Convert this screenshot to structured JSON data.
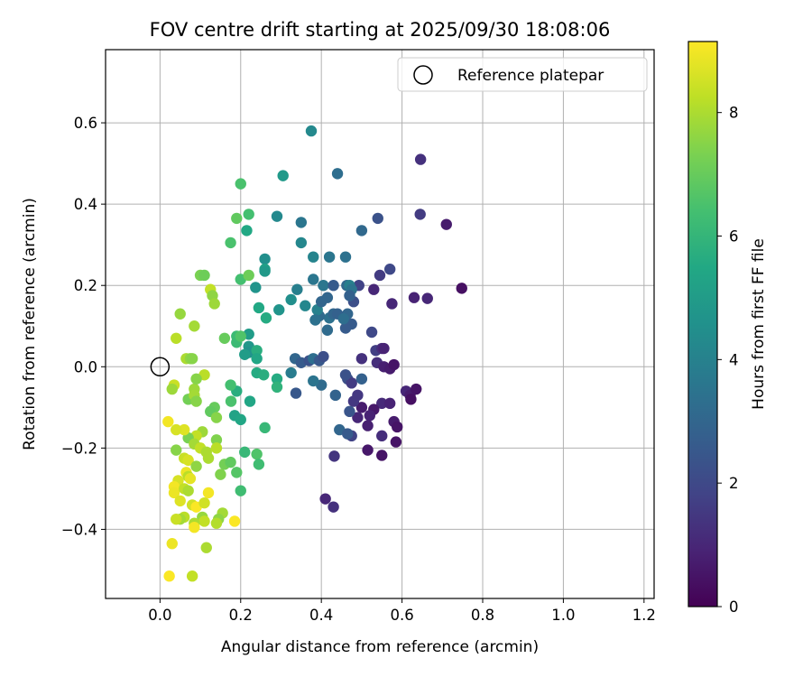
{
  "chart_data": {
    "type": "scatter",
    "title": "FOV centre drift starting at 2025/09/30 18:08:06",
    "xlabel": "Angular distance from reference (arcmin)",
    "ylabel": "Rotation from reference (arcmin)",
    "xlim": [
      -0.135,
      1.225
    ],
    "ylim": [
      -0.57,
      0.78
    ],
    "xticks": [
      0.0,
      0.2,
      0.4,
      0.6,
      0.8,
      1.0,
      1.2
    ],
    "xtick_labels": [
      "0.0",
      "0.2",
      "0.4",
      "0.6",
      "0.8",
      "1.0",
      "1.2"
    ],
    "yticks": [
      -0.4,
      -0.2,
      0.0,
      0.2,
      0.4,
      0.6
    ],
    "ytick_labels": [
      "−0.4",
      "−0.2",
      "0.0",
      "0.2",
      "0.4",
      "0.6"
    ],
    "grid": true,
    "legend": {
      "label": "Reference platepar",
      "position": "top-right"
    },
    "reference_point": {
      "x": 0.0,
      "y": 0.0
    },
    "colorbar": {
      "label": "Hours from first FF file",
      "min": 0,
      "max": 9.15,
      "ticks": [
        0,
        2,
        4,
        6,
        8
      ],
      "tick_labels": [
        "0",
        "2",
        "4",
        "6",
        "8"
      ],
      "colormap": "viridis"
    },
    "points": [
      {
        "x": 0.646,
        "y": 0.51,
        "h": 1.3
      },
      {
        "x": 0.71,
        "y": 0.35,
        "h": 0.7
      },
      {
        "x": 0.748,
        "y": 0.193,
        "h": 0.4
      },
      {
        "x": 0.645,
        "y": 0.375,
        "h": 1.6
      },
      {
        "x": 0.663,
        "y": 0.168,
        "h": 1.0
      },
      {
        "x": 0.63,
        "y": 0.17,
        "h": 0.9
      },
      {
        "x": 0.575,
        "y": 0.155,
        "h": 1.0
      },
      {
        "x": 0.53,
        "y": 0.19,
        "h": 1.0
      },
      {
        "x": 0.545,
        "y": 0.225,
        "h": 1.6
      },
      {
        "x": 0.57,
        "y": 0.24,
        "h": 2.0
      },
      {
        "x": 0.54,
        "y": 0.365,
        "h": 2.3
      },
      {
        "x": 0.5,
        "y": 0.335,
        "h": 3.1
      },
      {
        "x": 0.493,
        "y": 0.2,
        "h": 1.8
      },
      {
        "x": 0.48,
        "y": 0.16,
        "h": 2.2
      },
      {
        "x": 0.465,
        "y": 0.13,
        "h": 3.0
      },
      {
        "x": 0.475,
        "y": 0.105,
        "h": 2.6
      },
      {
        "x": 0.525,
        "y": 0.085,
        "h": 2.0
      },
      {
        "x": 0.535,
        "y": 0.04,
        "h": 1.7
      },
      {
        "x": 0.55,
        "y": 0.045,
        "h": 1.2
      },
      {
        "x": 0.555,
        "y": 0.045,
        "h": 0.9
      },
      {
        "x": 0.5,
        "y": 0.02,
        "h": 1.3
      },
      {
        "x": 0.538,
        "y": 0.01,
        "h": 1.2
      },
      {
        "x": 0.555,
        "y": 0.0,
        "h": 0.8
      },
      {
        "x": 0.57,
        "y": -0.005,
        "h": 0.7
      },
      {
        "x": 0.58,
        "y": 0.005,
        "h": 0.5
      },
      {
        "x": 0.61,
        "y": -0.06,
        "h": 1.0
      },
      {
        "x": 0.62,
        "y": -0.07,
        "h": 0.7
      },
      {
        "x": 0.635,
        "y": -0.055,
        "h": 0.5
      },
      {
        "x": 0.622,
        "y": -0.08,
        "h": 0.4
      },
      {
        "x": 0.55,
        "y": -0.09,
        "h": 1.1
      },
      {
        "x": 0.57,
        "y": -0.09,
        "h": 0.9
      },
      {
        "x": 0.53,
        "y": -0.105,
        "h": 0.6
      },
      {
        "x": 0.5,
        "y": -0.1,
        "h": 0.7
      },
      {
        "x": 0.52,
        "y": -0.12,
        "h": 0.9
      },
      {
        "x": 0.49,
        "y": -0.125,
        "h": 1.0
      },
      {
        "x": 0.515,
        "y": -0.145,
        "h": 0.8
      },
      {
        "x": 0.58,
        "y": -0.135,
        "h": 0.7
      },
      {
        "x": 0.588,
        "y": -0.148,
        "h": 0.5
      },
      {
        "x": 0.55,
        "y": -0.17,
        "h": 1.2
      },
      {
        "x": 0.585,
        "y": -0.185,
        "h": 0.5
      },
      {
        "x": 0.515,
        "y": -0.205,
        "h": 0.6
      },
      {
        "x": 0.55,
        "y": -0.218,
        "h": 0.5
      },
      {
        "x": 0.48,
        "y": -0.085,
        "h": 1.5
      },
      {
        "x": 0.49,
        "y": -0.07,
        "h": 1.5
      },
      {
        "x": 0.465,
        "y": -0.03,
        "h": 2.2
      },
      {
        "x": 0.475,
        "y": -0.04,
        "h": 1.6
      },
      {
        "x": 0.5,
        "y": -0.03,
        "h": 2.8
      },
      {
        "x": 0.46,
        "y": -0.02,
        "h": 2.3
      },
      {
        "x": 0.47,
        "y": -0.11,
        "h": 2.4
      },
      {
        "x": 0.475,
        "y": -0.17,
        "h": 1.8
      },
      {
        "x": 0.445,
        "y": -0.155,
        "h": 3.0
      },
      {
        "x": 0.465,
        "y": -0.165,
        "h": 2.6
      },
      {
        "x": 0.432,
        "y": -0.22,
        "h": 1.4
      },
      {
        "x": 0.41,
        "y": -0.325,
        "h": 1.0
      },
      {
        "x": 0.43,
        "y": -0.345,
        "h": 1.3
      },
      {
        "x": 0.435,
        "y": -0.07,
        "h": 2.9
      },
      {
        "x": 0.4,
        "y": -0.045,
        "h": 3.2
      },
      {
        "x": 0.337,
        "y": -0.065,
        "h": 2.5
      },
      {
        "x": 0.38,
        "y": -0.035,
        "h": 3.5
      },
      {
        "x": 0.325,
        "y": -0.015,
        "h": 3.8
      },
      {
        "x": 0.335,
        "y": 0.02,
        "h": 3.0
      },
      {
        "x": 0.35,
        "y": 0.01,
        "h": 2.6
      },
      {
        "x": 0.37,
        "y": 0.015,
        "h": 2.3
      },
      {
        "x": 0.38,
        "y": 0.02,
        "h": 3.3
      },
      {
        "x": 0.395,
        "y": 0.015,
        "h": 2.5
      },
      {
        "x": 0.405,
        "y": 0.025,
        "h": 2.2
      },
      {
        "x": 0.415,
        "y": 0.09,
        "h": 3.2
      },
      {
        "x": 0.42,
        "y": 0.12,
        "h": 3.4
      },
      {
        "x": 0.395,
        "y": 0.125,
        "h": 3.2
      },
      {
        "x": 0.43,
        "y": 0.13,
        "h": 3.0
      },
      {
        "x": 0.44,
        "y": 0.13,
        "h": 2.8
      },
      {
        "x": 0.46,
        "y": 0.095,
        "h": 2.6
      },
      {
        "x": 0.455,
        "y": 0.118,
        "h": 3.3
      },
      {
        "x": 0.405,
        "y": 0.2,
        "h": 3.6
      },
      {
        "x": 0.38,
        "y": 0.215,
        "h": 3.6
      },
      {
        "x": 0.39,
        "y": 0.14,
        "h": 4.0
      },
      {
        "x": 0.385,
        "y": 0.115,
        "h": 3.4
      },
      {
        "x": 0.36,
        "y": 0.15,
        "h": 4.2
      },
      {
        "x": 0.34,
        "y": 0.19,
        "h": 3.9
      },
      {
        "x": 0.325,
        "y": 0.165,
        "h": 4.5
      },
      {
        "x": 0.4,
        "y": 0.16,
        "h": 3.0
      },
      {
        "x": 0.415,
        "y": 0.17,
        "h": 3.0
      },
      {
        "x": 0.43,
        "y": 0.2,
        "h": 2.6
      },
      {
        "x": 0.463,
        "y": 0.2,
        "h": 3.1
      },
      {
        "x": 0.47,
        "y": 0.2,
        "h": 3.9
      },
      {
        "x": 0.475,
        "y": 0.19,
        "h": 3.5
      },
      {
        "x": 0.47,
        "y": 0.175,
        "h": 2.8
      },
      {
        "x": 0.42,
        "y": 0.27,
        "h": 3.6
      },
      {
        "x": 0.46,
        "y": 0.27,
        "h": 3.4
      },
      {
        "x": 0.38,
        "y": 0.27,
        "h": 4.1
      },
      {
        "x": 0.35,
        "y": 0.305,
        "h": 4.2
      },
      {
        "x": 0.35,
        "y": 0.355,
        "h": 3.6
      },
      {
        "x": 0.44,
        "y": 0.475,
        "h": 3.3
      },
      {
        "x": 0.375,
        "y": 0.58,
        "h": 4.3
      },
      {
        "x": 0.305,
        "y": 0.47,
        "h": 4.9
      },
      {
        "x": 0.29,
        "y": 0.37,
        "h": 4.3
      },
      {
        "x": 0.26,
        "y": 0.265,
        "h": 4.5
      },
      {
        "x": 0.26,
        "y": 0.24,
        "h": 5.2
      },
      {
        "x": 0.26,
        "y": 0.235,
        "h": 4.9
      },
      {
        "x": 0.237,
        "y": 0.195,
        "h": 4.7
      },
      {
        "x": 0.295,
        "y": 0.14,
        "h": 4.7
      },
      {
        "x": 0.245,
        "y": 0.145,
        "h": 5.5
      },
      {
        "x": 0.263,
        "y": 0.12,
        "h": 5.6
      },
      {
        "x": 0.22,
        "y": 0.08,
        "h": 5.0
      },
      {
        "x": 0.22,
        "y": 0.05,
        "h": 4.8
      },
      {
        "x": 0.22,
        "y": 0.035,
        "h": 4.6
      },
      {
        "x": 0.21,
        "y": 0.03,
        "h": 5.0
      },
      {
        "x": 0.24,
        "y": 0.04,
        "h": 5.7
      },
      {
        "x": 0.24,
        "y": 0.02,
        "h": 5.4
      },
      {
        "x": 0.24,
        "y": -0.015,
        "h": 5.6
      },
      {
        "x": 0.257,
        "y": -0.02,
        "h": 5.7
      },
      {
        "x": 0.29,
        "y": -0.03,
        "h": 5.6
      },
      {
        "x": 0.29,
        "y": -0.05,
        "h": 5.9
      },
      {
        "x": 0.223,
        "y": -0.085,
        "h": 5.4
      },
      {
        "x": 0.19,
        "y": -0.06,
        "h": 5.7
      },
      {
        "x": 0.185,
        "y": -0.12,
        "h": 5.3
      },
      {
        "x": 0.2,
        "y": -0.13,
        "h": 5.4
      },
      {
        "x": 0.26,
        "y": -0.15,
        "h": 6.1
      },
      {
        "x": 0.2,
        "y": -0.305,
        "h": 6.3
      },
      {
        "x": 0.21,
        "y": -0.21,
        "h": 6.1
      },
      {
        "x": 0.24,
        "y": -0.215,
        "h": 6.6
      },
      {
        "x": 0.245,
        "y": -0.24,
        "h": 6.3
      },
      {
        "x": 0.19,
        "y": -0.26,
        "h": 6.7
      },
      {
        "x": 0.16,
        "y": -0.24,
        "h": 7.2
      },
      {
        "x": 0.175,
        "y": -0.235,
        "h": 6.9
      },
      {
        "x": 0.175,
        "y": -0.045,
        "h": 6.4
      },
      {
        "x": 0.176,
        "y": -0.085,
        "h": 6.5
      },
      {
        "x": 0.19,
        "y": 0.075,
        "h": 6.2
      },
      {
        "x": 0.19,
        "y": 0.06,
        "h": 6.2
      },
      {
        "x": 0.2,
        "y": 0.075,
        "h": 6.6
      },
      {
        "x": 0.16,
        "y": 0.07,
        "h": 7.0
      },
      {
        "x": 0.2,
        "y": 0.215,
        "h": 6.4
      },
      {
        "x": 0.22,
        "y": 0.225,
        "h": 7.1
      },
      {
        "x": 0.215,
        "y": 0.335,
        "h": 5.5
      },
      {
        "x": 0.22,
        "y": 0.375,
        "h": 6.4
      },
      {
        "x": 0.19,
        "y": 0.365,
        "h": 6.9
      },
      {
        "x": 0.2,
        "y": 0.45,
        "h": 6.5
      },
      {
        "x": 0.175,
        "y": 0.305,
        "h": 6.5
      },
      {
        "x": 0.1,
        "y": 0.225,
        "h": 7.3
      },
      {
        "x": 0.11,
        "y": 0.225,
        "h": 7.1
      },
      {
        "x": 0.125,
        "y": 0.19,
        "h": 8.3
      },
      {
        "x": 0.13,
        "y": 0.175,
        "h": 7.6
      },
      {
        "x": 0.135,
        "y": 0.155,
        "h": 7.8
      },
      {
        "x": 0.085,
        "y": 0.1,
        "h": 7.9
      },
      {
        "x": 0.05,
        "y": 0.13,
        "h": 7.7
      },
      {
        "x": 0.04,
        "y": 0.07,
        "h": 8.2
      },
      {
        "x": 0.065,
        "y": 0.02,
        "h": 8.0
      },
      {
        "x": 0.075,
        "y": 0.02,
        "h": 7.6
      },
      {
        "x": 0.08,
        "y": 0.02,
        "h": 7.5
      },
      {
        "x": 0.11,
        "y": -0.02,
        "h": 8.2
      },
      {
        "x": 0.085,
        "y": -0.055,
        "h": 7.8
      },
      {
        "x": 0.09,
        "y": -0.03,
        "h": 7.5
      },
      {
        "x": 0.035,
        "y": -0.045,
        "h": 8.4
      },
      {
        "x": 0.03,
        "y": -0.055,
        "h": 7.8
      },
      {
        "x": 0.07,
        "y": -0.08,
        "h": 7.2
      },
      {
        "x": 0.085,
        "y": -0.07,
        "h": 7.9
      },
      {
        "x": 0.09,
        "y": -0.085,
        "h": 7.5
      },
      {
        "x": 0.135,
        "y": -0.1,
        "h": 7.0
      },
      {
        "x": 0.125,
        "y": -0.11,
        "h": 6.9
      },
      {
        "x": 0.14,
        "y": -0.125,
        "h": 7.5
      },
      {
        "x": 0.105,
        "y": -0.16,
        "h": 7.8
      },
      {
        "x": 0.09,
        "y": -0.17,
        "h": 8.3
      },
      {
        "x": 0.07,
        "y": -0.175,
        "h": 7.3
      },
      {
        "x": 0.085,
        "y": -0.19,
        "h": 7.9
      },
      {
        "x": 0.06,
        "y": -0.155,
        "h": 8.7
      },
      {
        "x": 0.04,
        "y": -0.155,
        "h": 8.6
      },
      {
        "x": 0.02,
        "y": -0.135,
        "h": 9.0
      },
      {
        "x": 0.04,
        "y": -0.205,
        "h": 7.5
      },
      {
        "x": 0.06,
        "y": -0.225,
        "h": 8.4
      },
      {
        "x": 0.07,
        "y": -0.23,
        "h": 8.6
      },
      {
        "x": 0.09,
        "y": -0.245,
        "h": 7.6
      },
      {
        "x": 0.1,
        "y": -0.2,
        "h": 8.3
      },
      {
        "x": 0.115,
        "y": -0.21,
        "h": 8.0
      },
      {
        "x": 0.12,
        "y": -0.225,
        "h": 8.0
      },
      {
        "x": 0.14,
        "y": -0.18,
        "h": 7.4
      },
      {
        "x": 0.14,
        "y": -0.2,
        "h": 8.2
      },
      {
        "x": 0.15,
        "y": -0.265,
        "h": 7.4
      },
      {
        "x": 0.065,
        "y": -0.26,
        "h": 8.9
      },
      {
        "x": 0.07,
        "y": -0.27,
        "h": 8.2
      },
      {
        "x": 0.075,
        "y": -0.275,
        "h": 8.8
      },
      {
        "x": 0.045,
        "y": -0.28,
        "h": 8.6
      },
      {
        "x": 0.035,
        "y": -0.295,
        "h": 9.0
      },
      {
        "x": 0.035,
        "y": -0.31,
        "h": 8.9
      },
      {
        "x": 0.06,
        "y": -0.3,
        "h": 8.3
      },
      {
        "x": 0.07,
        "y": -0.305,
        "h": 8.0
      },
      {
        "x": 0.05,
        "y": -0.33,
        "h": 8.7
      },
      {
        "x": 0.08,
        "y": -0.34,
        "h": 8.5
      },
      {
        "x": 0.09,
        "y": -0.345,
        "h": 9.1
      },
      {
        "x": 0.11,
        "y": -0.335,
        "h": 8.5
      },
      {
        "x": 0.12,
        "y": -0.31,
        "h": 9.0
      },
      {
        "x": 0.155,
        "y": -0.36,
        "h": 7.9
      },
      {
        "x": 0.145,
        "y": -0.375,
        "h": 7.6
      },
      {
        "x": 0.14,
        "y": -0.385,
        "h": 8.1
      },
      {
        "x": 0.105,
        "y": -0.37,
        "h": 7.7
      },
      {
        "x": 0.11,
        "y": -0.38,
        "h": 8.3
      },
      {
        "x": 0.085,
        "y": -0.385,
        "h": 8.0
      },
      {
        "x": 0.085,
        "y": -0.395,
        "h": 9.0
      },
      {
        "x": 0.06,
        "y": -0.37,
        "h": 8.2
      },
      {
        "x": 0.05,
        "y": -0.375,
        "h": 7.9
      },
      {
        "x": 0.04,
        "y": -0.375,
        "h": 8.4
      },
      {
        "x": 0.185,
        "y": -0.38,
        "h": 9.1
      },
      {
        "x": 0.115,
        "y": -0.445,
        "h": 8.0
      },
      {
        "x": 0.03,
        "y": -0.435,
        "h": 8.9
      },
      {
        "x": 0.08,
        "y": -0.515,
        "h": 8.3
      },
      {
        "x": 0.023,
        "y": -0.515,
        "h": 9.1
      }
    ]
  }
}
